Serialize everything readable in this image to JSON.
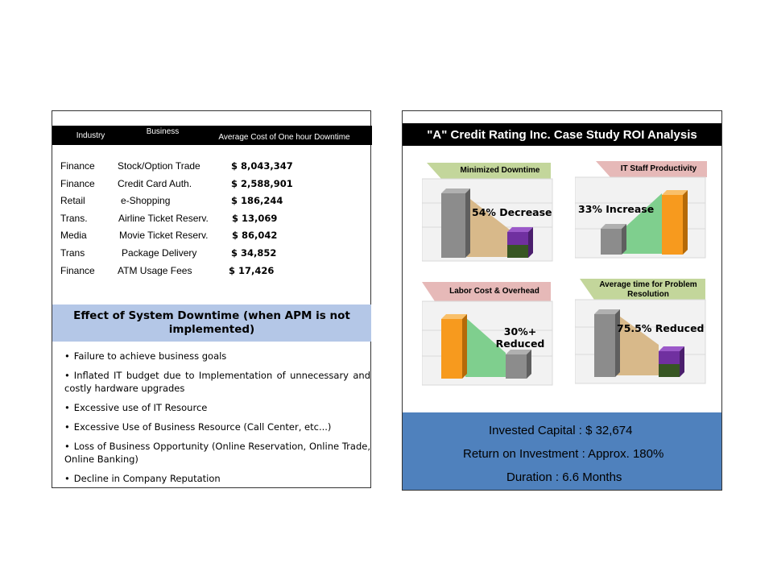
{
  "table": {
    "headers": {
      "industry": "Industry",
      "business": "Business",
      "cost": "Average Cost of One hour Downtime"
    },
    "rows": [
      {
        "industry": "Finance",
        "business": "Stock/Option Trade",
        "cost": "$ 8,043,347"
      },
      {
        "industry": "Finance",
        "business": "Credit Card Auth.",
        "cost": "$ 2,588,901"
      },
      {
        "industry": "Retail",
        "business": "e-Shopping",
        "cost": "$ 186,244"
      },
      {
        "industry": "Trans.",
        "business": "Airline Ticket Reserv.",
        "cost": "$ 13,069"
      },
      {
        "industry": "Media",
        "business": "Movie Ticket Reserv.",
        "cost": "$ 86,042"
      },
      {
        "industry": "Trans",
        "business": "Package Delivery",
        "cost": "$ 34,852"
      },
      {
        "industry": "Finance",
        "business": "ATM Usage Fees",
        "cost": "$ 17,426"
      }
    ]
  },
  "effect": {
    "title": "Effect of System Downtime (when APM is not implemented)",
    "bullets": [
      "Failure to achieve business goals",
      "Inflated IT budget due to Implementation of unnecessary and costly hardware upgrades",
      "Excessive use of IT Resource",
      "Excessive Use of Business Resource (Call Center, etc...)",
      "Loss of Business Opportunity (Online Reservation, Online Trade, Online Banking)",
      "Decline in Company Reputation"
    ]
  },
  "roi": {
    "title": "\"A\" Credit Rating Inc. Case Study ROI Analysis",
    "cards": [
      {
        "label": "Minimized Downtime",
        "value": "54% Decrease",
        "label_color": "#c3d69b"
      },
      {
        "label": "IT Staff Productivity",
        "value": "33% Increase",
        "label_color": "#e6b9b8"
      },
      {
        "label": "Labor Cost & Overhead",
        "value": "30%+ Reduced",
        "label_color": "#e6b9b8"
      },
      {
        "label": "Average time for Problem Resolution",
        "value": "75.5% Reduced",
        "label_color": "#c3d69b"
      }
    ],
    "summary": {
      "invested": "Invested Capital : $  32,674",
      "return": "Return on Investment : Approx. 180%",
      "duration": "Duration : 6.6 Months"
    }
  },
  "colors": {
    "header_bg": "#000000",
    "effect_bg": "#b4c7e7",
    "summary_bg": "#4f81bd",
    "bar_gray": "#8c8c8c",
    "bar_orange": "#f79a1e",
    "bar_purple": "#7030a0",
    "fill_tan": "#d8b98a",
    "fill_green": "#7fcf8e"
  }
}
